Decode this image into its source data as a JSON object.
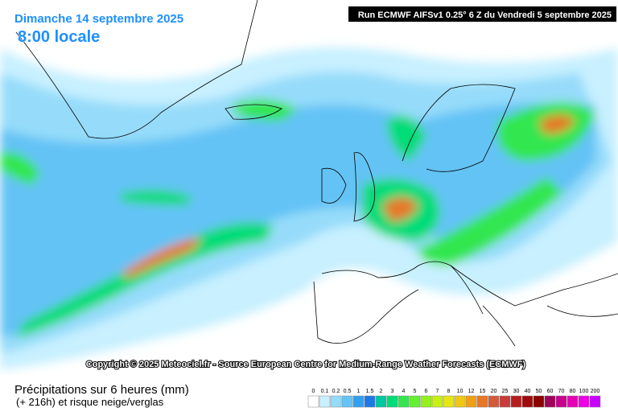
{
  "header": {
    "date": "Dimanche 14 septembre 2025",
    "time": "8:00 locale",
    "run": "Run ECMWF AIFSv1 0.25° 6 Z du Vendredi 5 septembre 2025"
  },
  "copyright": "Copyright © 2025 Meteociel.fr - Source European Centre for Medium-Range Weather Forecasts (ECMWF)",
  "footer": {
    "title": "Précipitations sur 6 heures (mm)",
    "subtitle": "(+ 216h) et risque neige/verglas"
  },
  "legend": {
    "labels": [
      "0",
      "0.1",
      "0.2",
      "0.5",
      "1",
      "1.5",
      "2",
      "3",
      "4",
      "5",
      "6",
      "7",
      "8",
      "10",
      "12",
      "15",
      "20",
      "25",
      "30",
      "40",
      "50",
      "60",
      "70",
      "80",
      "100",
      "200"
    ],
    "colors": [
      "#ffffff",
      "#c8f0ff",
      "#96dcfa",
      "#64c3f5",
      "#32a0f0",
      "#1e78e6",
      "#00c8a0",
      "#00dc78",
      "#32e650",
      "#64f032",
      "#96f01e",
      "#c8f014",
      "#e6e614",
      "#f0c814",
      "#f0a014",
      "#e67828",
      "#d25a3c",
      "#c83c3c",
      "#b41e1e",
      "#a00a0a",
      "#8c0000",
      "#a0005a",
      "#c8008c",
      "#e600b4",
      "#f000e6",
      "#c800ff"
    ]
  }
}
